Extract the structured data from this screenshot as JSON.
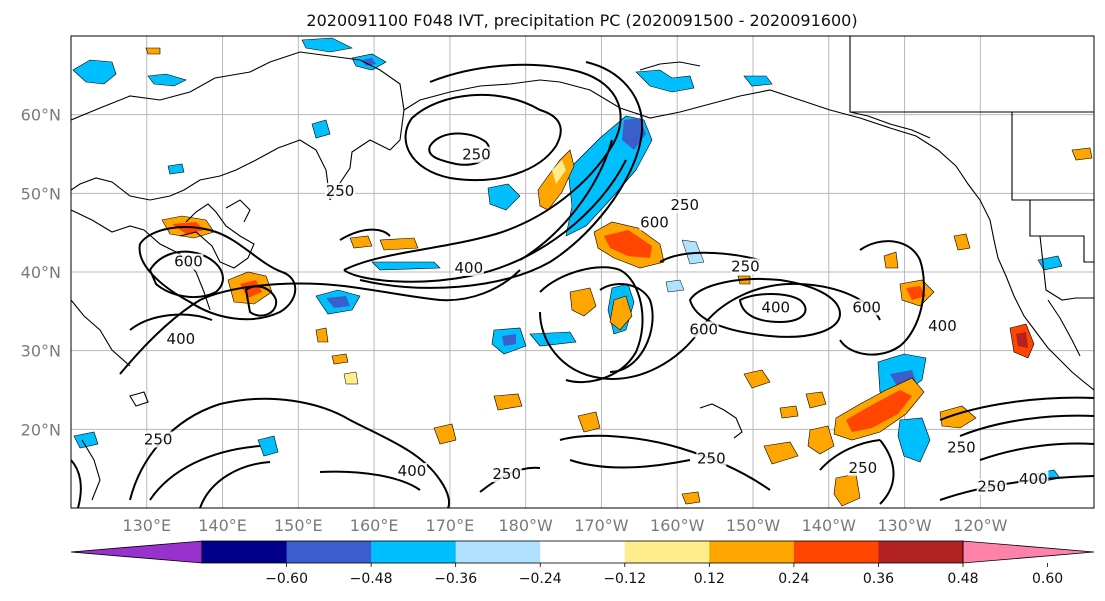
{
  "title": "2020091100 F048 IVT, precipitation PC (2020091500 - 2020091600)",
  "map": {
    "lon_ticks": [
      "130°E",
      "140°E",
      "150°E",
      "160°E",
      "170°E",
      "180°W",
      "170°W",
      "160°W",
      "150°W",
      "140°W",
      "130°W",
      "120°W"
    ],
    "lat_ticks": [
      "60°N",
      "50°N",
      "40°N",
      "30°N",
      "20°N"
    ],
    "gridlines": true,
    "contour_labels": [
      {
        "text": "250",
        "lon": 173.5,
        "lat": 54.4
      },
      {
        "text": "250",
        "lon": 155.5,
        "lat": 49.8
      },
      {
        "text": "250",
        "lon": 201.0,
        "lat": 48.0
      },
      {
        "text": "600",
        "lon": 197.0,
        "lat": 45.8
      },
      {
        "text": "600",
        "lon": 135.5,
        "lat": 40.8
      },
      {
        "text": "400",
        "lon": 172.5,
        "lat": 40.0
      },
      {
        "text": "250",
        "lon": 209.0,
        "lat": 40.2
      },
      {
        "text": "400",
        "lon": 213.0,
        "lat": 35.0
      },
      {
        "text": "600",
        "lon": 225.0,
        "lat": 35.0
      },
      {
        "text": "400",
        "lon": 235.0,
        "lat": 32.6
      },
      {
        "text": "600",
        "lon": 203.5,
        "lat": 32.2
      },
      {
        "text": "400",
        "lon": 134.5,
        "lat": 31.0
      },
      {
        "text": "250",
        "lon": 131.5,
        "lat": 18.2
      },
      {
        "text": "400",
        "lon": 165.0,
        "lat": 14.2
      },
      {
        "text": "250",
        "lon": 177.5,
        "lat": 13.8
      },
      {
        "text": "250",
        "lon": 204.5,
        "lat": 15.8
      },
      {
        "text": "250",
        "lon": 224.5,
        "lat": 14.6
      },
      {
        "text": "250",
        "lon": 237.5,
        "lat": 17.2
      },
      {
        "text": "250",
        "lon": 241.5,
        "lat": 12.2
      },
      {
        "text": "400",
        "lon": 247.0,
        "lat": 13.2
      }
    ]
  },
  "colorbar": {
    "ticks": [
      "−0.60",
      "−0.48",
      "−0.36",
      "−0.24",
      "−0.12",
      "0.12",
      "0.24",
      "0.36",
      "0.48",
      "0.60"
    ],
    "colors": [
      "#9932cc",
      "#00008b",
      "#3a5fcd",
      "#00bfff",
      "#b0e2ff",
      "#ffffff",
      "#ffec8b",
      "#ffa500",
      "#ff4500",
      "#b22222",
      "#ff82ab"
    ]
  },
  "icons": [
    "coastline-shapes",
    "contour-lines"
  ]
}
